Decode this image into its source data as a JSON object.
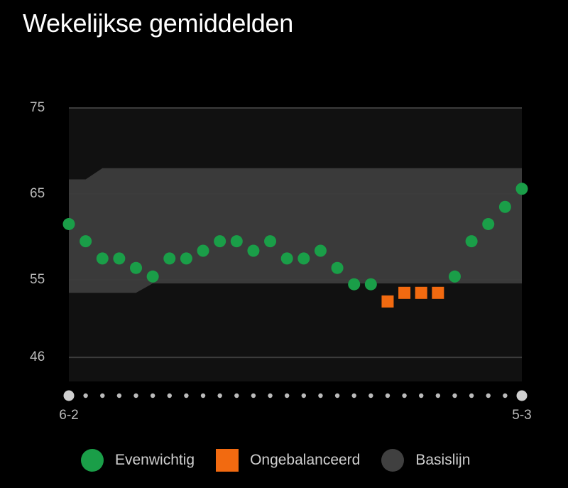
{
  "header": {
    "title": "Wekelijkse gemiddelden"
  },
  "colors": {
    "background": "#000000",
    "plot_bg": "#111111",
    "baseline_band": "#3a3a3a",
    "gridline": "#3c3c3c",
    "balanced": "#1a9e48",
    "unbalanced": "#f26a10",
    "baseline_legend": "#404040",
    "axis_text": "#bbbbbb",
    "dot": "#bbbbbb",
    "end_dot": "#cfcfcf"
  },
  "chart_data": {
    "type": "scatter",
    "title": "Wekelijkse gemiddelden",
    "y_ticks": [
      75,
      65,
      55,
      46
    ],
    "ylim": [
      43.2,
      75
    ],
    "x_start_label": "6-2",
    "x_end_label": "5-3",
    "week_count": 28,
    "grid": true,
    "legend_position": "bottom",
    "baseline_band": {
      "upper": [
        66.7,
        66.7,
        68,
        68,
        68,
        68,
        68,
        68,
        68,
        68,
        68,
        68,
        68,
        68,
        68,
        68,
        68,
        68,
        68,
        68,
        68,
        68,
        68,
        68,
        68,
        68,
        68,
        68
      ],
      "lower": [
        53.5,
        53.5,
        53.5,
        53.5,
        53.5,
        54.6,
        54.6,
        54.6,
        54.6,
        54.6,
        54.6,
        54.6,
        54.6,
        54.6,
        54.6,
        54.6,
        54.6,
        54.6,
        54.6,
        54.6,
        54.6,
        54.6,
        54.6,
        54.6,
        54.6,
        54.6,
        54.6,
        54.6
      ]
    },
    "series": [
      {
        "name": "Evenwichtig",
        "marker": "circle",
        "color": "#1a9e48",
        "points": [
          [
            0,
            61.5
          ],
          [
            1,
            59.5
          ],
          [
            2,
            57.5
          ],
          [
            3,
            57.5
          ],
          [
            4,
            56.4
          ],
          [
            5,
            55.4
          ],
          [
            6,
            57.5
          ],
          [
            7,
            57.5
          ],
          [
            8,
            58.4
          ],
          [
            9,
            59.5
          ],
          [
            10,
            59.5
          ],
          [
            11,
            58.4
          ],
          [
            12,
            59.5
          ],
          [
            13,
            57.5
          ],
          [
            14,
            57.5
          ],
          [
            15,
            58.4
          ],
          [
            16,
            56.4
          ],
          [
            17,
            54.5
          ],
          [
            18,
            54.5
          ],
          [
            23,
            55.4
          ],
          [
            24,
            59.5
          ],
          [
            25,
            61.5
          ],
          [
            26,
            63.5
          ],
          [
            27,
            65.6
          ]
        ]
      },
      {
        "name": "Ongebalanceerd",
        "marker": "square",
        "color": "#f26a10",
        "points": [
          [
            19,
            52.5
          ],
          [
            20,
            53.5
          ],
          [
            21,
            53.5
          ],
          [
            22,
            53.5
          ]
        ]
      }
    ]
  },
  "legend": {
    "items": [
      {
        "label": "Evenwichtig",
        "color": "#1a9e48"
      },
      {
        "label": "Ongebalanceerd",
        "color": "#f26a10"
      },
      {
        "label": "Basislijn",
        "color": "#404040"
      }
    ]
  }
}
